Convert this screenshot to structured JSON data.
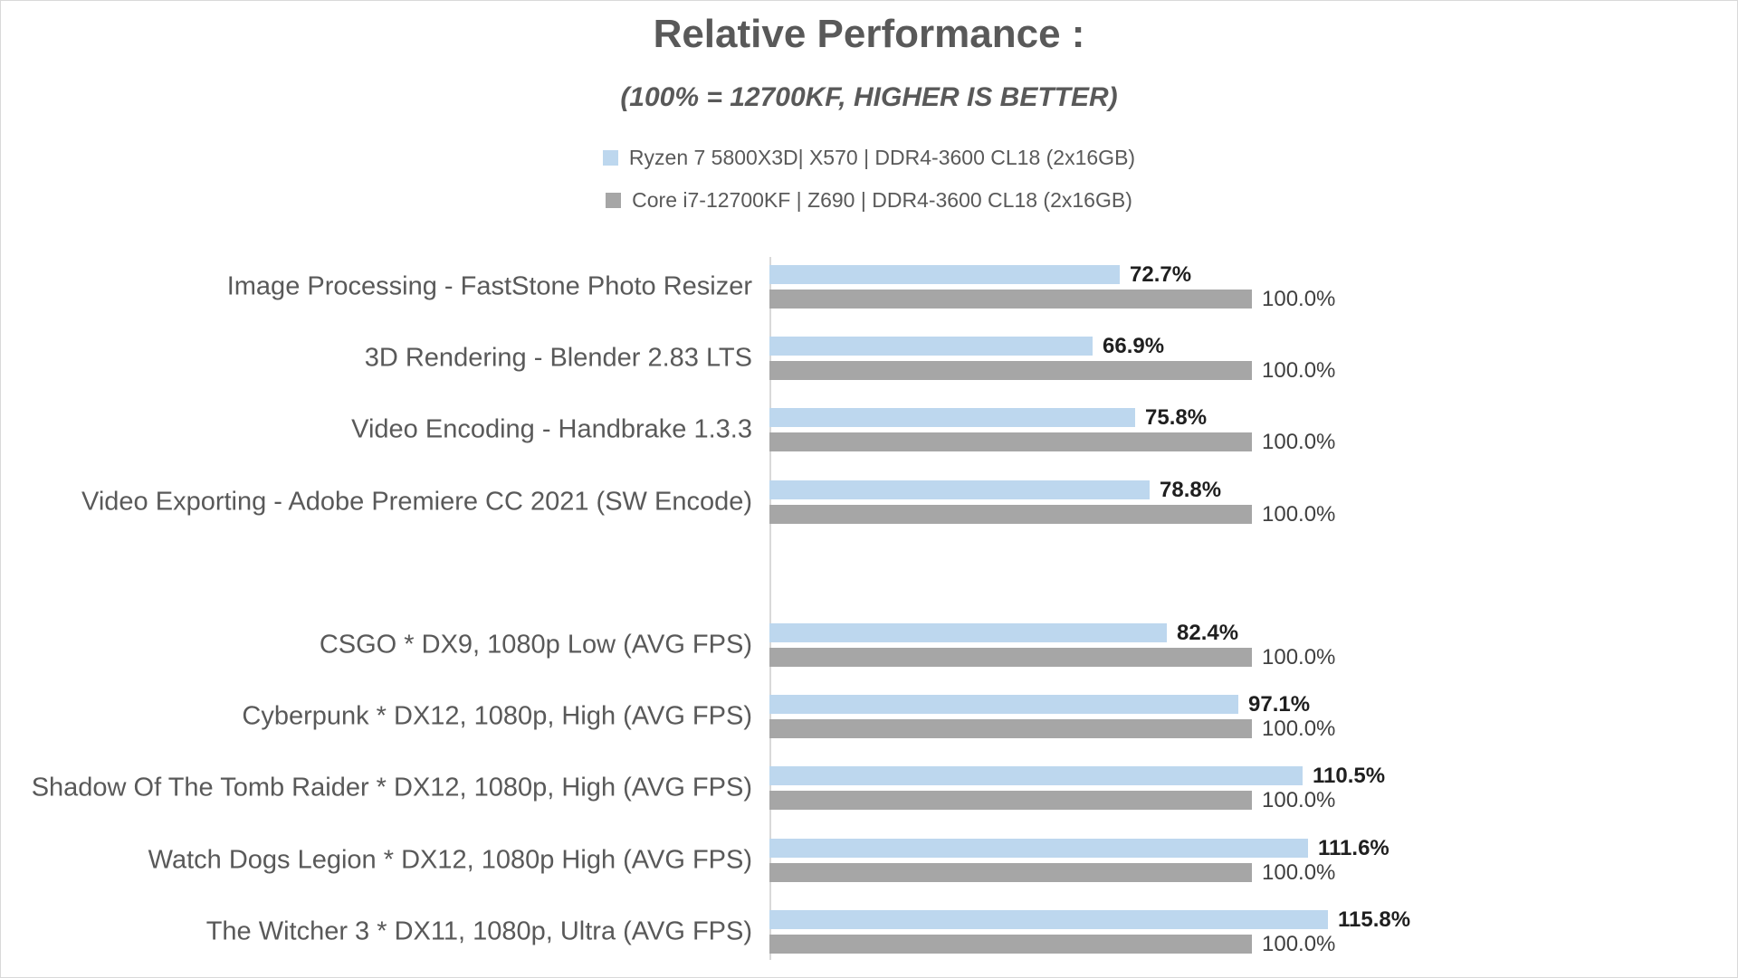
{
  "chart_data": {
    "type": "bar",
    "orientation": "horizontal",
    "title": "Relative Performance :",
    "subtitle": "(100% = 12700KF, HIGHER IS BETTER)",
    "value_suffix": "%",
    "axis_range": [
      0,
      120
    ],
    "grid": false,
    "legend_position": "top-center",
    "legend": [
      {
        "label": "Ryzen 7 5800X3D| X570 | DDR4-3600 CL18 (2x16GB)",
        "color": "#bdd7ee"
      },
      {
        "label": "Core i7-12700KF | Z690 | DDR4-3600 CL18 (2x16GB)",
        "color": "#a6a6a6"
      }
    ],
    "categories": [
      "Image Processing - FastStone Photo Resizer",
      "3D Rendering - Blender 2.83 LTS",
      "Video Encoding - Handbrake 1.3.3",
      "Video Exporting - Adobe Premiere CC 2021 (SW Encode)",
      "CSGO * DX9, 1080p Low (AVG FPS)",
      "Cyberpunk * DX12, 1080p, High (AVG FPS)",
      "Shadow Of The Tomb Raider * DX12, 1080p, High (AVG FPS)",
      "Watch Dogs Legion * DX12, 1080p High (AVG FPS)",
      "The Witcher 3 * DX11, 1080p, Ultra (AVG FPS)"
    ],
    "gap_after_index": 3,
    "series": [
      {
        "name": "Ryzen 7 5800X3D| X570 | DDR4-3600 CL18 (2x16GB)",
        "color": "#bdd7ee",
        "value_label_bold": true,
        "values": [
          72.7,
          66.9,
          75.8,
          78.8,
          82.4,
          97.1,
          110.5,
          111.6,
          115.8
        ]
      },
      {
        "name": "Core i7-12700KF | Z690 | DDR4-3600 CL18 (2x16GB)",
        "color": "#a6a6a6",
        "value_label_bold": false,
        "values": [
          100.0,
          100.0,
          100.0,
          100.0,
          100.0,
          100.0,
          100.0,
          100.0,
          100.0
        ]
      }
    ],
    "colors": {
      "title": "#595959",
      "category_label": "#595959",
      "value_label_primary": "#1f1f1f",
      "value_label_secondary": "#404040",
      "axis_line": "#d9d9d9",
      "page_border": "#d9d9d9"
    }
  }
}
